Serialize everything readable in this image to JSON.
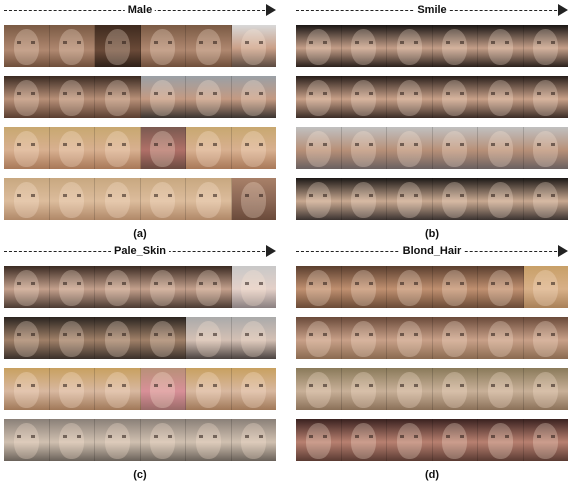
{
  "panels": [
    {
      "id": "a",
      "attribute": "Male",
      "caption": "(a)"
    },
    {
      "id": "b",
      "attribute": "Smile",
      "caption": "(b)"
    },
    {
      "id": "c",
      "attribute": "Pale_Skin",
      "caption": "(c)"
    },
    {
      "id": "d",
      "attribute": "Blond_Hair",
      "caption": "(d)"
    }
  ],
  "grid": {
    "rows_per_panel": 4,
    "faces_per_row": 6
  }
}
